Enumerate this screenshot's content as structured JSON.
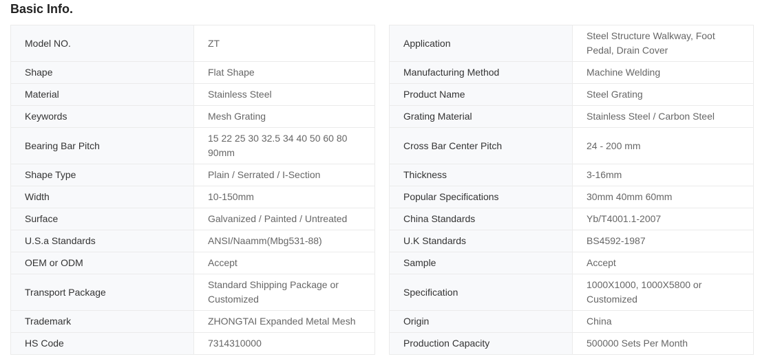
{
  "title": "Basic Info.",
  "left": [
    {
      "label": "Model NO.",
      "value": "ZT",
      "tall": true
    },
    {
      "label": "Shape",
      "value": "Flat Shape"
    },
    {
      "label": "Material",
      "value": "Stainless Steel"
    },
    {
      "label": "Keywords",
      "value": "Mesh Grating"
    },
    {
      "label": "Bearing Bar Pitch",
      "value": "15 22 25 30 32.5 34 40 50 60 80 90mm"
    },
    {
      "label": "Shape Type",
      "value": "Plain / Serrated / I-Section"
    },
    {
      "label": "Width",
      "value": "10-150mm"
    },
    {
      "label": "Surface",
      "value": "Galvanized / Painted / Untreated"
    },
    {
      "label": "U.S.a Standards",
      "value": "ANSI/Naamm(Mbg531-88)"
    },
    {
      "label": "OEM or ODM",
      "value": "Accept"
    },
    {
      "label": "Transport Package",
      "value": "Standard Shipping Package or Customized"
    },
    {
      "label": "Trademark",
      "value": "ZHONGTAI Expanded Metal Mesh"
    },
    {
      "label": "HS Code",
      "value": "7314310000"
    }
  ],
  "right": [
    {
      "label": "Application",
      "value": "Steel Structure Walkway, Foot Pedal, Drain Cover"
    },
    {
      "label": "Manufacturing Method",
      "value": "Machine Welding"
    },
    {
      "label": "Product Name",
      "value": "Steel Grating"
    },
    {
      "label": "Grating Material",
      "value": "Stainless Steel / Carbon Steel"
    },
    {
      "label": "Cross Bar Center Pitch",
      "value": "24 - 200 mm",
      "tall": true
    },
    {
      "label": "Thickness",
      "value": "3-16mm"
    },
    {
      "label": "Popular Specifications",
      "value": "30mm 40mm 60mm"
    },
    {
      "label": "China Standards",
      "value": "Yb/T4001.1-2007"
    },
    {
      "label": "U.K Standards",
      "value": "BS4592-1987"
    },
    {
      "label": "Sample",
      "value": "Accept"
    },
    {
      "label": "Specification",
      "value": "1000X1000, 1000X5800 or Customized"
    },
    {
      "label": "Origin",
      "value": "China"
    },
    {
      "label": "Production Capacity",
      "value": "500000 Sets Per Month"
    }
  ]
}
